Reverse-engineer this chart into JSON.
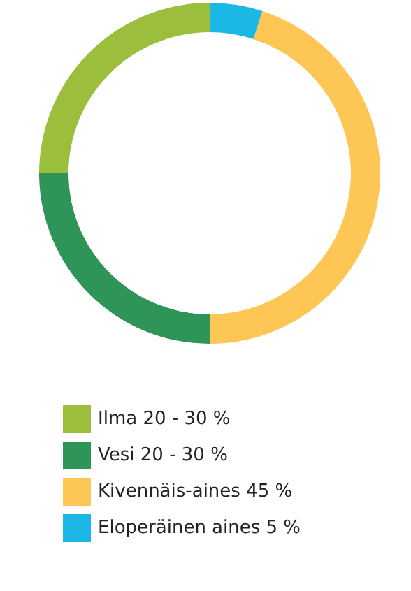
{
  "chart_data": {
    "type": "donut",
    "categories": [
      "Ilma 20 - 30 %",
      "Vesi 20 - 30 %",
      "Kivennäis-aines 45 %",
      "Eloperäinen aines 5 %"
    ],
    "values": [
      25,
      25,
      45,
      5
    ],
    "colors": [
      "#9bbf3c",
      "#2e9457",
      "#fdc655",
      "#1bb8e6"
    ],
    "legend": "bottom"
  }
}
